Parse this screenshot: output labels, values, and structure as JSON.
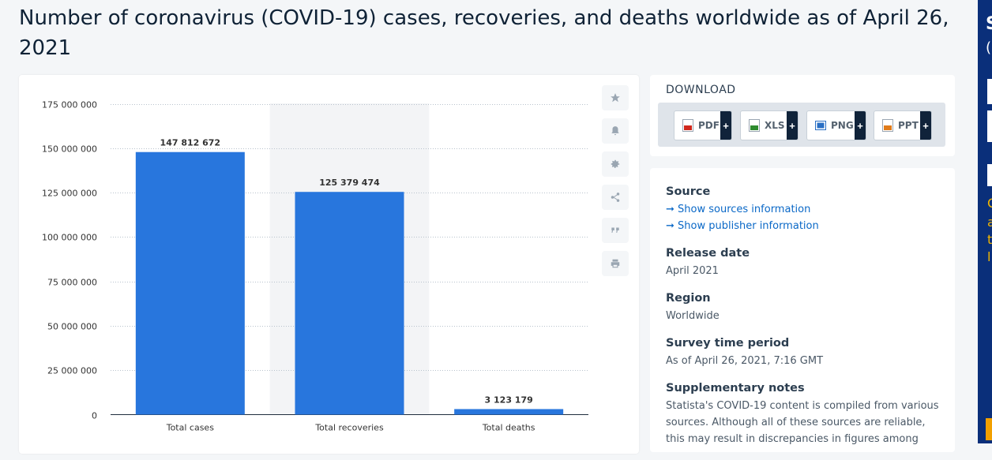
{
  "page": {
    "title": "Number of coronavirus (COVID-19) cases, recoveries, and deaths worldwide as of April 26, 2021"
  },
  "chart_data": {
    "type": "bar",
    "categories": [
      "Total cases",
      "Total recoveries",
      "Total deaths"
    ],
    "values": [
      147812672,
      125379474,
      3123179
    ],
    "value_labels": [
      "147 812 672",
      "125 379 474",
      "3 123 179"
    ],
    "yticks": [
      0,
      25000000,
      50000000,
      75000000,
      100000000,
      125000000,
      150000000,
      175000000
    ],
    "ytick_labels": [
      "0",
      "25 000 000",
      "50 000 000",
      "75 000 000",
      "100 000 000",
      "125 000 000",
      "150 000 000",
      "175 000 000"
    ],
    "ylim": [
      0,
      175000000
    ],
    "title": "",
    "xlabel": "",
    "ylabel": "",
    "grid": true,
    "highlighted_category": "Total recoveries",
    "bar_color": "#2876dd"
  },
  "tools": [
    {
      "name": "star-icon"
    },
    {
      "name": "bell-icon"
    },
    {
      "name": "gear-icon"
    },
    {
      "name": "share-icon"
    },
    {
      "name": "quote-icon"
    },
    {
      "name": "print-icon"
    }
  ],
  "download": {
    "heading": "DOWNLOAD",
    "buttons": [
      {
        "label": "PDF",
        "plus": "+",
        "color": "#d0281c"
      },
      {
        "label": "XLS",
        "plus": "+",
        "color": "#2e8b2e"
      },
      {
        "label": "PNG",
        "plus": "+",
        "color": "#2a6fc4"
      },
      {
        "label": "PPT",
        "plus": "+",
        "color": "#e07b1a"
      }
    ]
  },
  "info": {
    "source_heading": "Source",
    "sources_link": "➞ Show sources information",
    "publisher_link": "➞ Show publisher information",
    "release_heading": "Release date",
    "release_value": "April 2021",
    "region_heading": "Region",
    "region_value": "Worldwide",
    "survey_heading": "Survey time period",
    "survey_value": "As of April 26, 2021, 7:16 GMT",
    "notes_heading": "Supplementary notes",
    "notes_value": "Statista's COVID-19 content is compiled from various sources. Although all of these sources are reliable, this may result in discrepancies in figures among"
  },
  "ad": {
    "letters": [
      "S",
      "(",
      "I",
      "I",
      "I"
    ],
    "yellow": [
      "C",
      "a",
      "t",
      "l"
    ]
  }
}
